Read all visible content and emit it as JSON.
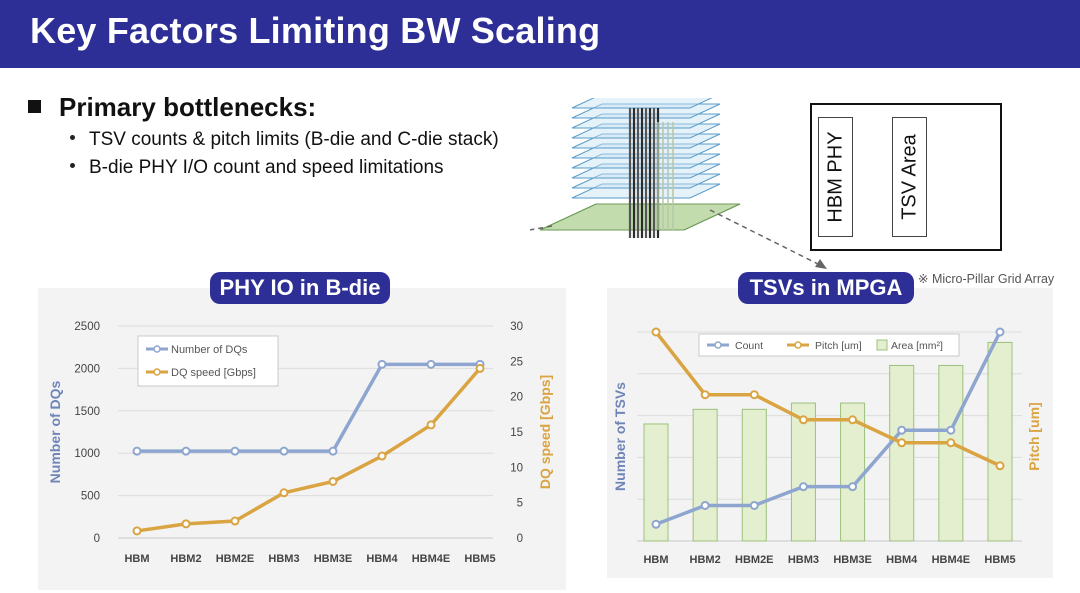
{
  "header": {
    "title": "Key Factors Limiting BW Scaling"
  },
  "bullets": {
    "main": "Primary bottlenecks:",
    "items": [
      "TSV counts & pitch limits (B-die and C-die stack)",
      "B-die PHY I/O count and speed limitations"
    ]
  },
  "stack_diagram": {
    "box_labels": [
      "HBM PHY",
      "TSV Area"
    ]
  },
  "panels": {
    "left_title": "PHY IO in B-die",
    "right_title": "TSVs in MPGA",
    "right_note": "※ Micro-Pillar Grid Array"
  },
  "colors": {
    "banner": "#2e2f96",
    "series_blue": "#8ea6cf",
    "series_orange": "#d9a441",
    "bar_green": "#e4efcf",
    "bar_edge": "#9cc07c"
  },
  "chart_data": [
    {
      "type": "line",
      "categories": [
        "HBM",
        "HBM2",
        "HBM2E",
        "HBM3",
        "HBM3E",
        "HBM4",
        "HBM4E",
        "HBM5"
      ],
      "ylabel": "Number of DQs",
      "y2label": "DQ speed [Gbps]",
      "ylim": [
        0,
        2500
      ],
      "y2lim": [
        0,
        30
      ],
      "yticks": [
        "0",
        "500",
        "1000",
        "1500",
        "2000",
        "2500"
      ],
      "y2ticks": [
        "0",
        "5",
        "10",
        "15",
        "20",
        "25",
        "30"
      ],
      "series": [
        {
          "name": "Number of DQs",
          "axis": "left",
          "values": [
            1024,
            1024,
            1024,
            1024,
            1024,
            2048,
            2048,
            2048
          ]
        },
        {
          "name": "DQ speed [Gbps]",
          "axis": "right",
          "values": [
            1,
            2,
            2.4,
            6.4,
            8,
            11.6,
            16,
            24
          ]
        }
      ],
      "legend": "top-left",
      "grid": true
    },
    {
      "type": "line+bar",
      "categories": [
        "HBM",
        "HBM2",
        "HBM2E",
        "HBM3",
        "HBM3E",
        "HBM4",
        "HBM4E",
        "HBM5"
      ],
      "ylabel": "Number of TSVs",
      "y2label": "Pitch [um]",
      "series": [
        {
          "name": "Count",
          "kind": "line",
          "values": [
            0.08,
            0.17,
            0.17,
            0.26,
            0.26,
            0.53,
            0.53,
            1.0
          ]
        },
        {
          "name": "Pitch [um]",
          "kind": "line",
          "values": [
            1.0,
            0.7,
            0.7,
            0.58,
            0.58,
            0.47,
            0.47,
            0.36
          ]
        },
        {
          "name": "Area [mm²]",
          "kind": "bar",
          "values": [
            0.56,
            0.63,
            0.63,
            0.66,
            0.66,
            0.84,
            0.84,
            0.95
          ]
        }
      ],
      "legend": "top",
      "grid": true
    }
  ]
}
